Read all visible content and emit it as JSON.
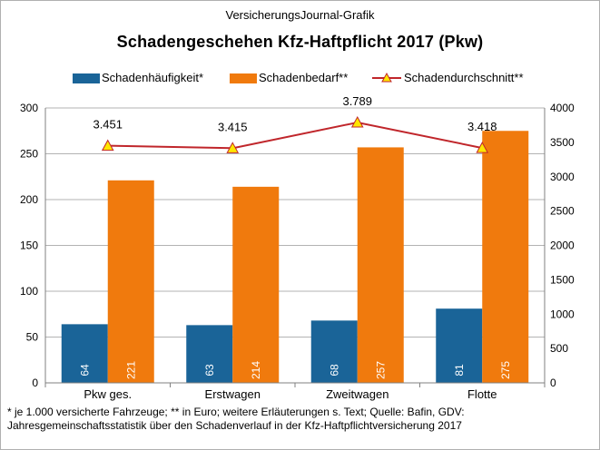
{
  "header": {
    "source": "VersicherungsJournal-Grafik",
    "title": "Schadengeschehen  Kfz-Haftpflicht 2017 (Pkw)"
  },
  "legend": {
    "frequency": "Schadenhäufigkeit*",
    "demand": "Schadenbedarf**",
    "average": "Schadendurchschnitt**"
  },
  "footnote": {
    "line1": "* je 1.000 versicherte Fahrzeuge; ** in Euro; weitere Erläuterungen s. Text; Quelle: Bafin, GDV:",
    "line2": "Jahresgemeinschaftsstatistik über den Schadenverlauf in der Kfz-Haftpflichtversicherung 2017"
  },
  "colors": {
    "frequency": "#1a6498",
    "demand": "#f07a0d",
    "average_line": "#c0262b",
    "average_marker_fill": "#ffe600",
    "grid": "#b3b3b3"
  },
  "chart_data": {
    "type": "bar",
    "categories": [
      "Pkw ges.",
      "Erstwagen",
      "Zweitwagen",
      "Flotte"
    ],
    "series": [
      {
        "name": "Schadenhäufigkeit*",
        "axis": "left",
        "values": [
          64,
          63,
          68,
          81
        ],
        "labels": [
          "64",
          "63",
          "68",
          "81"
        ]
      },
      {
        "name": "Schadenbedarf**",
        "axis": "left",
        "values": [
          221,
          214,
          257,
          275
        ],
        "labels": [
          "221",
          "214",
          "257",
          "275"
        ]
      },
      {
        "name": "Schadendurchschnitt**",
        "axis": "right",
        "type": "line",
        "values": [
          3451,
          3415,
          3789,
          3418
        ],
        "labels": [
          "3.451",
          "3.415",
          "3.789",
          "3.418"
        ]
      }
    ],
    "y_left": {
      "lim": [
        0,
        300
      ],
      "ticks": [
        "0",
        "50",
        "100",
        "150",
        "200",
        "250",
        "300"
      ]
    },
    "y_right": {
      "lim": [
        0,
        4000
      ],
      "ticks": [
        "0",
        "500",
        "1000",
        "1500",
        "2000",
        "2500",
        "3000",
        "3500",
        "4000"
      ]
    },
    "grid": "horizontal",
    "legend_position": "top"
  }
}
